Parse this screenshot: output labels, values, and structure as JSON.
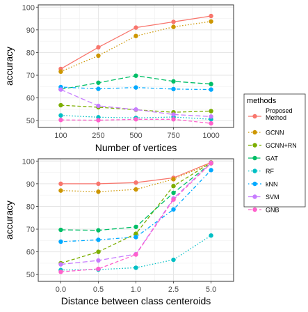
{
  "chart_data": [
    {
      "type": "line",
      "xlabel": "Number of vertices",
      "ylabel": "accuracy",
      "x": [
        "100",
        "250",
        "500",
        "750",
        "1000"
      ],
      "ylim": [
        47,
        101
      ],
      "yticks": [
        50,
        60,
        70,
        80,
        90,
        100
      ],
      "grid": true,
      "series": [
        {
          "name": "Proposed Method",
          "values": [
            72.8,
            82.3,
            91.0,
            93.5,
            96.1
          ]
        },
        {
          "name": "GCNN",
          "values": [
            71.6,
            78.6,
            87.3,
            91.3,
            93.7
          ]
        },
        {
          "name": "GCNN+RN",
          "values": [
            56.8,
            55.9,
            54.8,
            53.7,
            54.2
          ]
        },
        {
          "name": "GAT",
          "values": [
            63.8,
            66.7,
            69.8,
            67.3,
            66.1
          ]
        },
        {
          "name": "RF",
          "values": [
            52.3,
            51.5,
            51.2,
            51.6,
            50.6
          ]
        },
        {
          "name": "kNN",
          "values": [
            64.8,
            64.0,
            64.6,
            63.9,
            63.7
          ]
        },
        {
          "name": "SVM",
          "values": [
            63.7,
            56.5,
            54.9,
            52.7,
            51.8
          ]
        },
        {
          "name": "GNB",
          "values": [
            50.3,
            50.2,
            50.6,
            50.6,
            48.8
          ]
        }
      ]
    },
    {
      "type": "line",
      "xlabel": "Distance between class centeroids",
      "ylabel": "accuracy",
      "x": [
        "0.0",
        "0.5",
        "1.0",
        "2.5",
        "5.0"
      ],
      "ylim": [
        47,
        101
      ],
      "yticks": [
        50,
        60,
        70,
        80,
        90,
        100
      ],
      "grid": true,
      "series": [
        {
          "name": "Proposed Method",
          "values": [
            90.0,
            90.0,
            90.5,
            92.6,
            99.4
          ]
        },
        {
          "name": "GCNN",
          "values": [
            87.0,
            86.5,
            87.5,
            92.0,
            99.0
          ]
        },
        {
          "name": "GCNN+RN",
          "values": [
            55.0,
            60.0,
            68.0,
            89.0,
            99.3
          ]
        },
        {
          "name": "GAT",
          "values": [
            69.7,
            69.5,
            71.0,
            86.0,
            99.0
          ]
        },
        {
          "name": "RF",
          "values": [
            52.0,
            52.2,
            53.0,
            56.5,
            67.2
          ]
        },
        {
          "name": "kNN",
          "values": [
            64.5,
            65.3,
            66.5,
            78.7,
            96.0
          ]
        },
        {
          "name": "SVM",
          "values": [
            54.5,
            56.2,
            59.0,
            83.5,
            99.2
          ]
        },
        {
          "name": "GNB",
          "values": [
            51.2,
            52.5,
            58.8,
            83.0,
            99.0
          ]
        }
      ]
    }
  ],
  "legend": {
    "title": "methods",
    "placement": "right",
    "entries": [
      {
        "label_lines": [
          "Proposed",
          "Method"
        ],
        "color": "#F8766D",
        "dash": "solid"
      },
      {
        "label_lines": [
          "GCNN"
        ],
        "color": "#CD9600",
        "dash": "dotted"
      },
      {
        "label_lines": [
          "GCNN+RN"
        ],
        "color": "#7CAE00",
        "dash": "dashed"
      },
      {
        "label_lines": [
          "GAT"
        ],
        "color": "#00BE67",
        "dash": "longdash"
      },
      {
        "label_lines": [
          "RF"
        ],
        "color": "#00BFC4",
        "dash": "dotted"
      },
      {
        "label_lines": [
          "kNN"
        ],
        "color": "#00A9FF",
        "dash": "dotdash"
      },
      {
        "label_lines": [
          "SVM"
        ],
        "color": "#C77CFF",
        "dash": "longdash"
      },
      {
        "label_lines": [
          "GNB"
        ],
        "color": "#FF61CC",
        "dash": "dashed"
      }
    ]
  }
}
